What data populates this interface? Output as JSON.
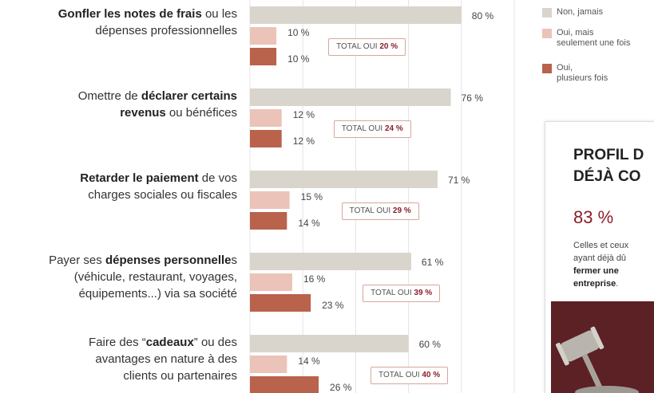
{
  "chart_data": {
    "type": "bar",
    "orientation": "horizontal",
    "categories": [
      [
        [
          {
            "text": "Gonfler les notes de frais",
            "bold": true
          },
          {
            "text": " ou les"
          }
        ],
        [
          {
            "text": "dépenses professionnelles"
          }
        ]
      ],
      [
        [
          {
            "text": "Omettre de "
          },
          {
            "text": "déclarer certains",
            "bold": true
          }
        ],
        [
          {
            "text": "revenus",
            "bold": true
          },
          {
            "text": " ou bénéfices"
          }
        ]
      ],
      [
        [
          {
            "text": "Retarder le paiement",
            "bold": true
          },
          {
            "text": " de vos"
          }
        ],
        [
          {
            "text": "charges sociales ou fiscales"
          }
        ]
      ],
      [
        [
          {
            "text": "Payer ses "
          },
          {
            "text": "dépenses personnelle",
            "bold": true
          },
          {
            "text": "s"
          }
        ],
        [
          {
            "text": "(véhicule, restaurant, voyages,"
          }
        ],
        [
          {
            "text": "équipements...) via sa société"
          }
        ]
      ],
      [
        [
          {
            "text": "Faire des “"
          },
          {
            "text": "cadeaux",
            "bold": true
          },
          {
            "text": "” ou des"
          }
        ],
        [
          {
            "text": "avantages en nature à des"
          }
        ],
        [
          {
            "text": "clients ou partenaires"
          }
        ]
      ]
    ],
    "series": [
      {
        "name": "Non, jamais",
        "color": "#d9d5cd",
        "values": [
          80,
          76,
          71,
          61,
          60
        ],
        "value_labels": [
          "80 %",
          "76 %",
          "71 %",
          "61 %",
          "60 %"
        ]
      },
      {
        "name": "Oui, mais\nseulement une fois",
        "color": "#ebc3b9",
        "values": [
          10,
          12,
          15,
          16,
          14
        ],
        "value_labels": [
          "10 %",
          "12 %",
          "15 %",
          "16 %",
          "14 %"
        ]
      },
      {
        "name": "Oui,\nplusieurs fois",
        "color": "#b9624c",
        "values": [
          10,
          12,
          14,
          23,
          26
        ],
        "value_labels": [
          "10 %",
          "12 %",
          "14 %",
          "23 %",
          "26 %"
        ]
      }
    ],
    "total_label": "TOTAL OUI",
    "totals": {
      "values": [
        20,
        24,
        29,
        39,
        40
      ],
      "value_labels": [
        "20 %",
        "24 %",
        "29 %",
        "39 %",
        "40 %"
      ]
    },
    "xlim": [
      0,
      100
    ],
    "xticks": [
      0,
      20,
      40,
      60,
      80,
      100
    ],
    "grid": true,
    "side_panel": {
      "title_lines": [
        "PROFIL D",
        "DÉJÀ CO"
      ],
      "stat": "83 %",
      "text": [
        {
          "text": "Celles et ceux\nayant déjà dû\n"
        },
        {
          "text": "fermer une\nentreprise",
          "bold": true
        },
        {
          "text": "."
        }
      ]
    }
  }
}
